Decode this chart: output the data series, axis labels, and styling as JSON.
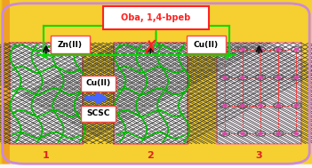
{
  "title_box_text": "Oba, 1,4-bpeb",
  "zn_label": "Zn(II)",
  "cu_label_top": "Cu(II)",
  "cu_label_mid": "Cu(II)",
  "scsc_label": "SCSC",
  "box1_label": "1",
  "box2_label": "2",
  "box3_label": "3",
  "outer_border_color": "#cc88dd",
  "box_border_color": "#ff8888",
  "title_color": "#ff2222",
  "cross_color": "#ff2222",
  "arrow_green": "#00dd00",
  "arrow_blue": "#4466ff",
  "arrow_black": "#111111",
  "label_border_color": "#ff4444",
  "bg_left": "#f0e020",
  "bg_right": "#f0a020",
  "figsize": [
    3.51,
    1.89
  ],
  "dpi": 100
}
